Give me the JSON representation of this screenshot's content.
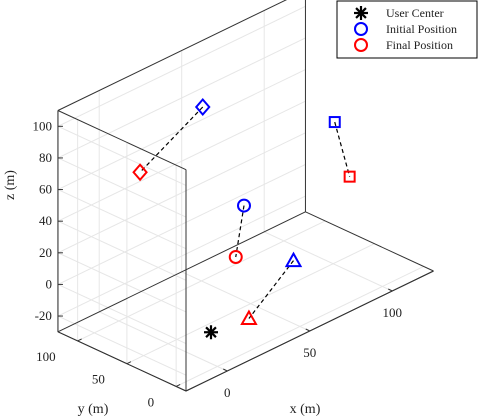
{
  "chart_data": {
    "type": "scatter",
    "projection": "3d",
    "title": "",
    "xlabel": "x (m)",
    "ylabel": "y (m)",
    "zlabel": "z (m)",
    "xticks": [
      0,
      50,
      100
    ],
    "yticks": [
      0,
      50,
      100
    ],
    "zticks": [
      -20,
      0,
      20,
      40,
      60,
      80,
      100
    ],
    "xlim": [
      -25,
      125
    ],
    "ylim": [
      -10,
      120
    ],
    "zlim": [
      -30,
      110
    ],
    "grid": true,
    "legend": {
      "position": "top-right",
      "entries": [
        "User Center",
        "Initial Position",
        "Final Position"
      ]
    },
    "colors": {
      "user_center": "#000000",
      "initial": "#0000ff",
      "final": "#ff0000",
      "connector": "#000000"
    },
    "user_center": {
      "x": 20,
      "y": 40,
      "z": -30
    },
    "users": [
      {
        "marker": "triangle",
        "initial": {
          "x": 70,
          "y": 40,
          "z": -10
        },
        "final": {
          "x": 40,
          "y": 35,
          "z": -30
        }
      },
      {
        "marker": "circle",
        "initial": {
          "x": 40,
          "y": 40,
          "z": 40
        },
        "final": {
          "x": 35,
          "y": 40,
          "z": 10
        }
      },
      {
        "marker": "square",
        "initial": {
          "x": 95,
          "y": 40,
          "z": 65
        },
        "final": {
          "x": 110,
          "y": 50,
          "z": 20
        }
      },
      {
        "marker": "diamond",
        "initial": {
          "x": 15,
          "y": 40,
          "z": 115
        },
        "final": {
          "x": -20,
          "y": 45,
          "z": 90
        }
      }
    ]
  }
}
